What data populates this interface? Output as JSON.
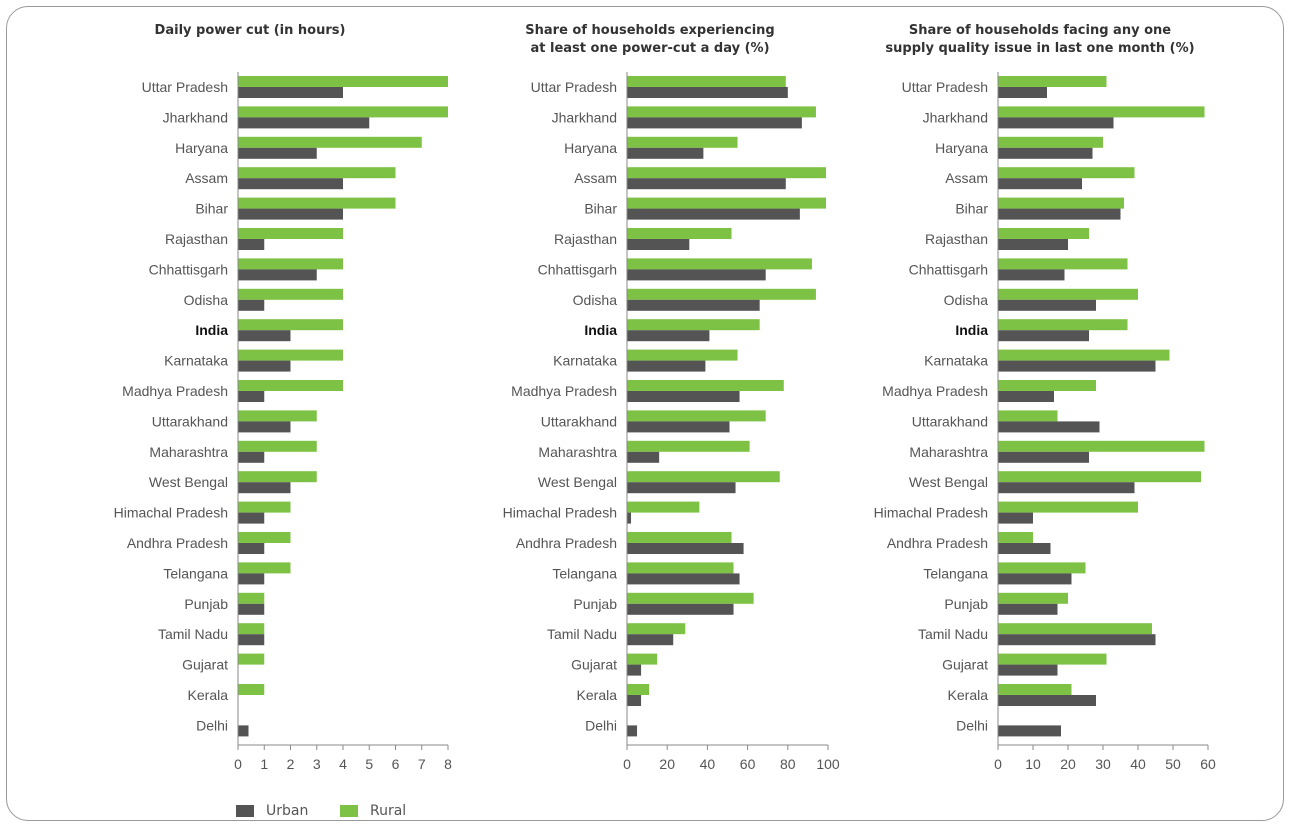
{
  "legend": {
    "urban_label": "Urban",
    "rural_label": "Rural"
  },
  "colors": {
    "urban": "#545454",
    "rural": "#7dc244",
    "axis": "#888888",
    "text": "#555555"
  },
  "chart_data": [
    {
      "type": "bar",
      "orientation": "horizontal",
      "title": "Daily power cut (in hours)",
      "xlim": [
        0,
        8
      ],
      "xticks": [
        0,
        1,
        2,
        3,
        4,
        5,
        6,
        7,
        8
      ],
      "categories": [
        "Uttar Pradesh",
        "Jharkhand",
        "Haryana",
        "Assam",
        "Bihar",
        "Rajasthan",
        "Chhattisgarh",
        "Odisha",
        "India",
        "Karnataka",
        "Madhya Pradesh",
        "Uttarakhand",
        "Maharashtra",
        "West Bengal",
        "Himachal Pradesh",
        "Andhra Pradesh",
        "Telangana",
        "Punjab",
        "Tamil Nadu",
        "Gujarat",
        "Kerala",
        "Delhi"
      ],
      "series": [
        {
          "name": "Rural",
          "values": [
            8,
            8,
            7,
            6,
            6,
            4,
            4,
            4,
            4,
            4,
            4,
            3,
            3,
            3,
            2,
            2,
            2,
            1,
            1,
            1,
            1,
            0
          ]
        },
        {
          "name": "Urban",
          "values": [
            4,
            5,
            3,
            4,
            4,
            1,
            3,
            1,
            2,
            2,
            1,
            2,
            1,
            2,
            1,
            1,
            1,
            1,
            1,
            0,
            0,
            0.4
          ]
        }
      ]
    },
    {
      "type": "bar",
      "orientation": "horizontal",
      "title": "Share of households experiencing\nat least one power-cut a day (%)",
      "xlim": [
        0,
        100
      ],
      "xticks": [
        0,
        20,
        40,
        60,
        80,
        100
      ],
      "categories": [
        "Uttar Pradesh",
        "Jharkhand",
        "Haryana",
        "Assam",
        "Bihar",
        "Rajasthan",
        "Chhattisgarh",
        "Odisha",
        "India",
        "Karnataka",
        "Madhya Pradesh",
        "Uttarakhand",
        "Maharashtra",
        "West Bengal",
        "Himachal Pradesh",
        "Andhra Pradesh",
        "Telangana",
        "Punjab",
        "Tamil Nadu",
        "Gujarat",
        "Kerala",
        "Delhi"
      ],
      "series": [
        {
          "name": "Rural",
          "values": [
            79,
            94,
            55,
            99,
            99,
            52,
            92,
            94,
            66,
            55,
            78,
            69,
            61,
            76,
            36,
            52,
            53,
            63,
            29,
            15,
            11,
            0
          ]
        },
        {
          "name": "Urban",
          "values": [
            80,
            87,
            38,
            79,
            86,
            31,
            69,
            66,
            41,
            39,
            56,
            51,
            16,
            54,
            2,
            58,
            56,
            53,
            23,
            7,
            7,
            5
          ]
        }
      ]
    },
    {
      "type": "bar",
      "orientation": "horizontal",
      "title": "Share of households facing any one\nsupply quality issue in last one month (%)",
      "xlim": [
        0,
        60
      ],
      "xticks": [
        0,
        10,
        20,
        30,
        40,
        50,
        60
      ],
      "categories": [
        "Uttar Pradesh",
        "Jharkhand",
        "Haryana",
        "Assam",
        "Bihar",
        "Rajasthan",
        "Chhattisgarh",
        "Odisha",
        "India",
        "Karnataka",
        "Madhya Pradesh",
        "Uttarakhand",
        "Maharashtra",
        "West Bengal",
        "Himachal Pradesh",
        "Andhra Pradesh",
        "Telangana",
        "Punjab",
        "Tamil Nadu",
        "Gujarat",
        "Kerala",
        "Delhi"
      ],
      "series": [
        {
          "name": "Rural",
          "values": [
            31,
            59,
            30,
            39,
            36,
            26,
            37,
            40,
            37,
            49,
            28,
            17,
            59,
            58,
            40,
            10,
            25,
            20,
            44,
            31,
            21,
            0
          ]
        },
        {
          "name": "Urban",
          "values": [
            14,
            33,
            27,
            24,
            35,
            20,
            19,
            28,
            26,
            45,
            16,
            29,
            26,
            39,
            10,
            15,
            21,
            17,
            45,
            17,
            28,
            18
          ]
        }
      ]
    }
  ]
}
